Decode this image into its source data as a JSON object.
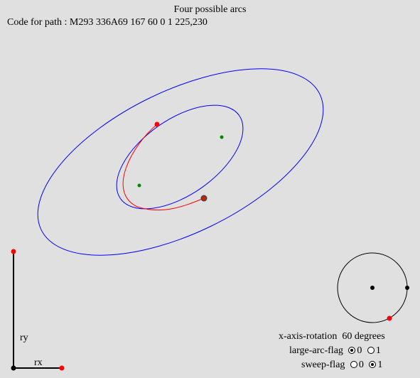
{
  "title": "Four possible arcs",
  "code_prefix": "Code for path : ",
  "code_path": "M293 336A69 167 60 0 1 225,230",
  "axis_labels": {
    "ry": "ry",
    "rx": "rx"
  },
  "controls": {
    "rotation_label": "x-axis-rotation",
    "rotation_value": "60 degrees",
    "large_arc_label": "large-arc-flag",
    "sweep_label": "sweep-flag",
    "large_arc_options": [
      "0",
      "1"
    ],
    "sweep_options": [
      "0",
      "1"
    ],
    "large_arc_selected": 0,
    "sweep_selected": 1
  },
  "colors": {
    "ellipse": "#0000ff",
    "arc": "#ff0000",
    "endpoint": "#ff0000",
    "center": "#008800",
    "handle": "#000000"
  }
}
